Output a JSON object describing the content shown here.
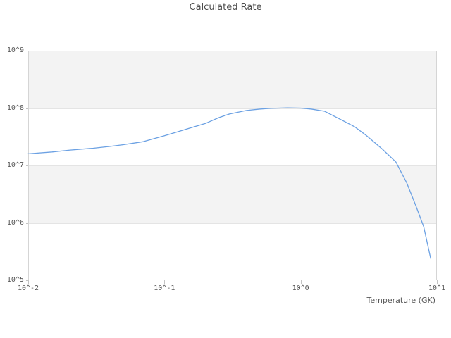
{
  "title": "Calculated Rate",
  "x_axis": {
    "label": "Temperature (GK)",
    "ticks": [
      {
        "label": "10^-2",
        "value": 0.01
      },
      {
        "label": "10^-1",
        "value": 0.1
      },
      {
        "label": "10^0",
        "value": 1
      },
      {
        "label": "10^1",
        "value": 10
      }
    ]
  },
  "y_axis": {
    "ticks": [
      {
        "label": "10^9",
        "value": 1000000000.0
      },
      {
        "label": "10^8",
        "value": 100000000.0
      },
      {
        "label": "10^7",
        "value": 10000000.0
      },
      {
        "label": "10^6",
        "value": 1000000.0
      },
      {
        "label": "10^5",
        "value": 100000.0
      }
    ]
  },
  "colors": {
    "line": "#6ca1e3",
    "band_gray": "#f3f3f3",
    "plot_border": "#d5d5d5",
    "gridline": "#e4e4e4",
    "text": "#555555",
    "title_text": "#4d4d4d"
  },
  "chart_data": {
    "type": "line",
    "title": "Calculated Rate",
    "xlabel": "Temperature (GK)",
    "ylabel": "",
    "x_scale": "log",
    "y_scale": "log",
    "xlim": [
      0.01,
      10
    ],
    "ylim": [
      100000.0,
      1000000000.0
    ],
    "grid": "decade bands, alternating gray/white",
    "legend": "none",
    "series": [
      {
        "name": "calculated-rate",
        "color": "#6ca1e3",
        "x": [
          0.01,
          0.015,
          0.02,
          0.03,
          0.04,
          0.05,
          0.07,
          0.1,
          0.15,
          0.2,
          0.25,
          0.3,
          0.4,
          0.5,
          0.6,
          0.8,
          1.0,
          1.2,
          1.5,
          2.0,
          2.5,
          3.0,
          3.5,
          4.0,
          5.0,
          6.0,
          7.0,
          8.0,
          9.0
        ],
        "y": [
          16000000.0,
          17200000.0,
          18500000.0,
          20000000.0,
          21500000.0,
          23000000.0,
          26000000.0,
          33000000.0,
          44000000.0,
          54000000.0,
          68000000.0,
          79000000.0,
          91000000.0,
          96000000.0,
          99000000.0,
          101000000.0,
          100000000.0,
          96000000.0,
          88000000.0,
          62000000.0,
          47000000.0,
          34000000.0,
          25000000.0,
          19000000.0,
          11500000.0,
          5000000.0,
          2000000.0,
          860000.0,
          240000.0
        ]
      }
    ]
  }
}
